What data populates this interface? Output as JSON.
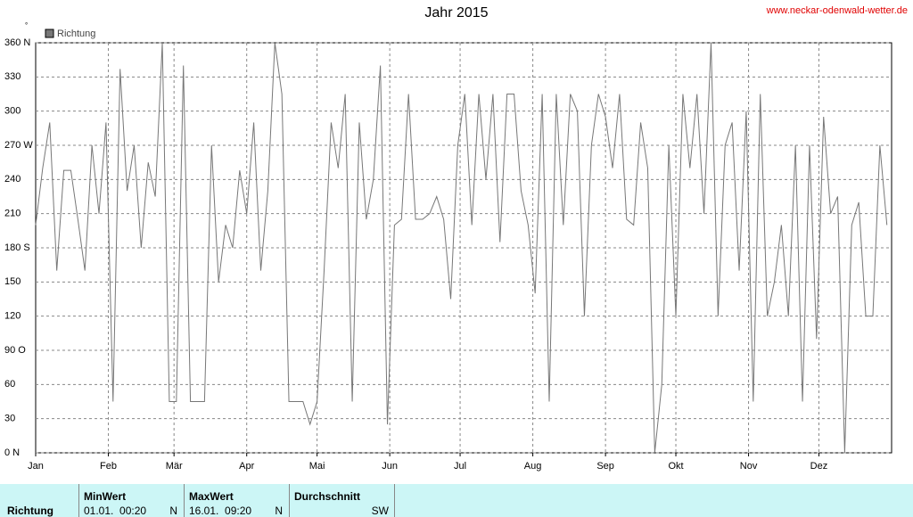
{
  "chart_data": {
    "type": "line",
    "title": "Jahr 2015",
    "source": "www.neckar-odenwald-wetter.de",
    "y_unit": "°",
    "series": [
      {
        "name": "Richtung",
        "color": "#777777",
        "x": [
          0,
          3,
          6,
          9,
          12,
          15,
          18,
          21,
          24,
          27,
          30,
          33,
          36,
          39,
          42,
          45,
          48,
          51,
          54,
          57,
          60,
          63,
          66,
          69,
          72,
          75,
          78,
          81,
          84,
          87,
          90,
          93,
          96,
          99,
          102,
          105,
          108,
          111,
          114,
          117,
          120,
          123,
          126,
          129,
          132,
          135,
          138,
          141,
          144,
          147,
          150,
          153,
          156,
          159,
          162,
          165,
          168,
          171,
          174,
          177,
          180,
          183,
          186,
          189,
          192,
          195,
          198,
          201,
          204,
          207,
          210,
          213,
          216,
          219,
          222,
          225,
          228,
          231,
          234,
          237,
          240,
          243,
          246,
          249,
          252,
          255,
          258,
          261,
          264,
          267,
          270,
          273,
          276,
          279,
          282,
          285,
          288,
          291,
          294,
          297,
          300,
          303,
          306,
          309,
          312,
          315,
          318,
          321,
          324,
          327,
          330,
          333,
          336,
          339,
          342,
          345,
          348,
          351,
          354,
          357,
          360,
          363
        ],
        "values": [
          200,
          250,
          290,
          160,
          248,
          248,
          205,
          160,
          270,
          210,
          290,
          45,
          337,
          230,
          270,
          180,
          255,
          225,
          360,
          45,
          45,
          340,
          45,
          45,
          45,
          270,
          150,
          200,
          180,
          248,
          210,
          290,
          160,
          230,
          360,
          315,
          45,
          45,
          45,
          25,
          45,
          160,
          290,
          250,
          315,
          45,
          290,
          205,
          240,
          340,
          25,
          200,
          205,
          315,
          205,
          205,
          210,
          225,
          205,
          135,
          270,
          315,
          200,
          315,
          240,
          315,
          185,
          315,
          315,
          230,
          200,
          140,
          315,
          45,
          315,
          200,
          315,
          300,
          120,
          270,
          315,
          295,
          250,
          315,
          205,
          200,
          290,
          250,
          0,
          60,
          270,
          120,
          315,
          250,
          315,
          210,
          360,
          120,
          270,
          290,
          160,
          300,
          45,
          315,
          120,
          150,
          200,
          120,
          270,
          45,
          270,
          100,
          295,
          210,
          225,
          0,
          200,
          220,
          120,
          120,
          270,
          200
        ]
      }
    ],
    "xlim": [
      0,
      365
    ],
    "xticks": [
      {
        "value": 0,
        "label": "Jan"
      },
      {
        "value": 31,
        "label": "Feb"
      },
      {
        "value": 59,
        "label": "Mär"
      },
      {
        "value": 90,
        "label": "Apr"
      },
      {
        "value": 120,
        "label": "Mai"
      },
      {
        "value": 151,
        "label": "Jun"
      },
      {
        "value": 181,
        "label": "Jul"
      },
      {
        "value": 212,
        "label": "Aug"
      },
      {
        "value": 243,
        "label": "Sep"
      },
      {
        "value": 273,
        "label": "Okt"
      },
      {
        "value": 304,
        "label": "Nov"
      },
      {
        "value": 334,
        "label": "Dez"
      }
    ],
    "ylim": [
      0,
      360
    ],
    "yticks": [
      {
        "value": 0,
        "label": "0 N"
      },
      30,
      60,
      {
        "value": 90,
        "label": "90 O"
      },
      120,
      150,
      {
        "value": 180,
        "label": "180 S"
      },
      210,
      240,
      {
        "value": 270,
        "label": "270 W"
      },
      300,
      330,
      {
        "value": 360,
        "label": "360 N"
      }
    ],
    "grid": true
  },
  "table": {
    "row_label": "Richtung",
    "columns": [
      {
        "header": "MinWert",
        "value": "01.01.  00:20",
        "dir": "N"
      },
      {
        "header": "MaxWert",
        "value": "16.01.  09:20",
        "dir": "N"
      },
      {
        "header": "Durchschnitt",
        "dir": "SW"
      }
    ]
  }
}
